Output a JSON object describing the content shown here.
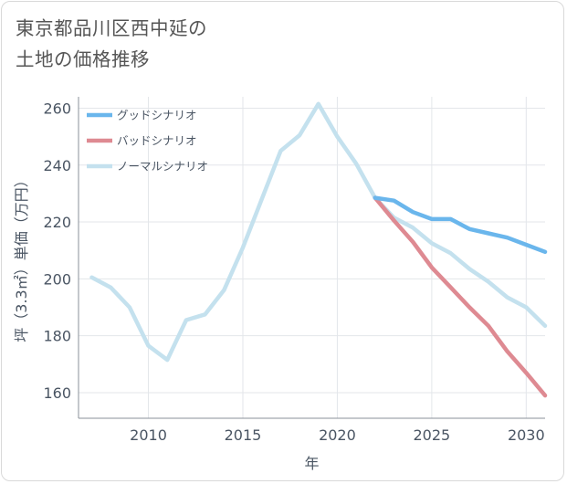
{
  "title": {
    "line1": "東京都品川区西中延の",
    "line2": "土地の価格推移"
  },
  "chart_data": {
    "type": "line",
    "xlabel": "年",
    "ylabel": "坪（3.3㎡）単価（万円）",
    "xlim": [
      2006.3,
      2031
    ],
    "ylim": [
      151,
      264
    ],
    "x_ticks": [
      2010,
      2015,
      2020,
      2025,
      2030
    ],
    "y_ticks": [
      160,
      180,
      200,
      220,
      240,
      260
    ],
    "grid": true,
    "legend_position": "top-left",
    "series": [
      {
        "name": "グッドシナリオ",
        "color": "#6ab6ec",
        "x": [
          2022,
          2023,
          2024,
          2025,
          2026,
          2027,
          2028,
          2029,
          2030,
          2031
        ],
        "values": [
          228.5,
          227.5,
          223.5,
          221,
          221,
          217.5,
          216,
          214.5,
          212,
          209.5
        ]
      },
      {
        "name": "バッドシナリオ",
        "color": "#de8a92",
        "x": [
          2022,
          2023,
          2024,
          2025,
          2026,
          2027,
          2028,
          2029,
          2030,
          2031
        ],
        "values": [
          228.5,
          220.5,
          213,
          204,
          197,
          190,
          183.5,
          174.5,
          167,
          159
        ]
      },
      {
        "name": "ノーマルシナリオ",
        "color": "#c4e1ee",
        "x": [
          2007,
          2008,
          2009,
          2010,
          2011,
          2012,
          2013,
          2014,
          2015,
          2016,
          2017,
          2018,
          2019,
          2020,
          2021,
          2022,
          2023,
          2024,
          2025,
          2026,
          2027,
          2028,
          2029,
          2030,
          2031
        ],
        "values": [
          200.5,
          197,
          190,
          176.5,
          171.5,
          185.5,
          187.5,
          196,
          211,
          228,
          245,
          250.5,
          261.5,
          250,
          240.5,
          228.5,
          221.5,
          218,
          212.5,
          209,
          203.5,
          199,
          193.5,
          190,
          183.5
        ]
      }
    ]
  }
}
